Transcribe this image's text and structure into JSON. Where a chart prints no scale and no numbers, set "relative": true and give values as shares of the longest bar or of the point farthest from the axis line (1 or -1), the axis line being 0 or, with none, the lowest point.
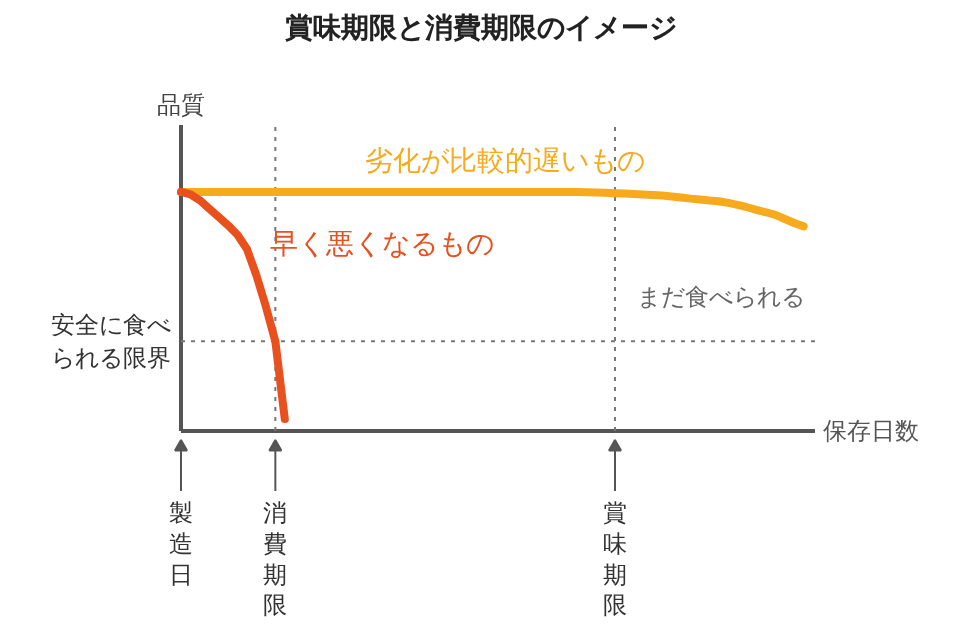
{
  "chart_data": {
    "type": "line",
    "title": "賞味期限と消費期限のイメージ",
    "xlabel": "保存日数",
    "ylabel": "品質",
    "relative": true,
    "categories": [
      "製造日",
      null,
      null,
      null,
      null,
      null,
      null,
      null,
      null,
      null,
      "消費期限",
      null,
      null,
      null,
      null,
      null,
      null,
      null,
      null,
      null,
      null,
      null,
      null,
      null,
      null,
      null,
      null,
      null,
      null,
      null,
      null,
      null,
      null,
      null,
      null,
      null,
      null,
      null,
      null,
      null,
      null,
      null,
      null,
      null,
      null,
      null,
      "賞味期限",
      null,
      null,
      null,
      null,
      null,
      null,
      null,
      null,
      null,
      null,
      null,
      null,
      null,
      null,
      null,
      null,
      null,
      null,
      null,
      null,
      null
    ],
    "series": [
      {
        "name": "劣化が比較的遅いもの",
        "color": "#f6aa1c",
        "values": [
          1,
          1,
          1,
          1,
          1,
          1,
          1,
          1,
          1,
          1,
          1,
          1,
          1,
          1,
          1,
          1,
          1,
          1,
          1,
          1,
          1,
          1,
          1,
          1,
          1,
          1,
          1,
          1,
          1,
          1,
          1,
          1,
          1,
          1,
          1,
          1,
          1,
          1,
          1,
          1,
          1,
          1,
          1,
          0.999,
          0.998,
          0.997,
          0.995,
          0.993,
          0.991,
          0.989,
          0.987,
          0.985,
          0.981,
          0.977,
          0.972,
          0.968,
          0.964,
          0.961,
          0.954,
          0.946,
          0.936,
          0.925,
          0.915,
          0.904,
          0.887,
          0.87,
          0.856,
          null
        ]
      },
      {
        "name": "早く悪くなるもの",
        "color": "#e8501e",
        "values": [
          1,
          0.99,
          0.965,
          0.93,
          0.895,
          0.86,
          0.82,
          0.76,
          0.65,
          0.52,
          0.375,
          0.05,
          null,
          null,
          null,
          null,
          null,
          null,
          null,
          null,
          null,
          null,
          null,
          null,
          null,
          null,
          null,
          null,
          null,
          null,
          null,
          null,
          null,
          null,
          null,
          null,
          null,
          null,
          null,
          null,
          null,
          null,
          null,
          null,
          null,
          null,
          null,
          null,
          null,
          null,
          null,
          null,
          null,
          null,
          null,
          null,
          null,
          null,
          null,
          null,
          null,
          null,
          null,
          null,
          null,
          null,
          null,
          null
        ]
      }
    ],
    "ref_lines": [
      {
        "axis": "y",
        "value": 0.375,
        "label": "安全に食べられる限界",
        "color": "#777777",
        "line_style": "dotted"
      },
      {
        "axis": "x",
        "value": "賞味期限",
        "label": null,
        "color": "#777777",
        "line_style": "dotted"
      },
      {
        "axis": "x",
        "value": "消費期限",
        "label": null,
        "color": "#777777",
        "line_style": "dotted"
      }
    ],
    "annotations": [
      "まだ食べられる"
    ],
    "grid": false
  }
}
